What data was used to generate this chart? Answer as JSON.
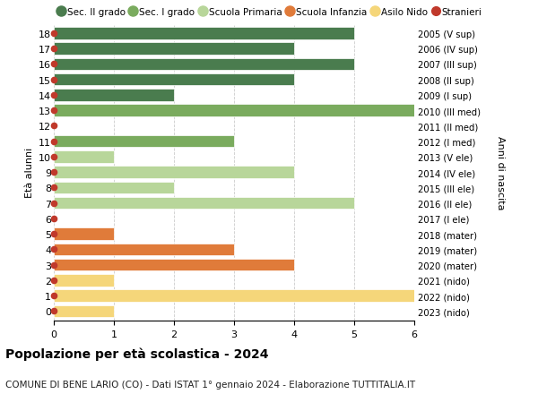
{
  "ages": [
    18,
    17,
    16,
    15,
    14,
    13,
    12,
    11,
    10,
    9,
    8,
    7,
    6,
    5,
    4,
    3,
    2,
    1,
    0
  ],
  "right_labels": [
    "2005 (V sup)",
    "2006 (IV sup)",
    "2007 (III sup)",
    "2008 (II sup)",
    "2009 (I sup)",
    "2010 (III med)",
    "2011 (II med)",
    "2012 (I med)",
    "2013 (V ele)",
    "2014 (IV ele)",
    "2015 (III ele)",
    "2016 (II ele)",
    "2017 (I ele)",
    "2018 (mater)",
    "2019 (mater)",
    "2020 (mater)",
    "2021 (nido)",
    "2022 (nido)",
    "2023 (nido)"
  ],
  "bar_values": [
    5,
    4,
    5,
    4,
    2,
    6,
    0,
    3,
    1,
    4,
    2,
    5,
    0,
    1,
    3,
    4,
    1,
    6,
    1
  ],
  "bar_colors": [
    "#4a7c4e",
    "#4a7c4e",
    "#4a7c4e",
    "#4a7c4e",
    "#4a7c4e",
    "#7aab5e",
    "#7aab5e",
    "#7aab5e",
    "#b8d69a",
    "#b8d69a",
    "#b8d69a",
    "#b8d69a",
    "#b8d69a",
    "#e07b3a",
    "#e07b3a",
    "#e07b3a",
    "#f5d67a",
    "#f5d67a",
    "#f5d67a"
  ],
  "stranieri_color": "#c0392b",
  "legend_labels": [
    "Sec. II grado",
    "Sec. I grado",
    "Scuola Primaria",
    "Scuola Infanzia",
    "Asilo Nido",
    "Stranieri"
  ],
  "legend_colors": [
    "#4a7c4e",
    "#7aab5e",
    "#b8d69a",
    "#e07b3a",
    "#f5d67a",
    "#c0392b"
  ],
  "title": "Popolazione per età scolastica - 2024",
  "subtitle": "COMUNE DI BENE LARIO (CO) - Dati ISTAT 1° gennaio 2024 - Elaborazione TUTTITALIA.IT",
  "ylabel": "Età alunni",
  "right_ylabel": "Anni di nascita",
  "xlim": [
    0,
    6
  ],
  "xticks": [
    0,
    1,
    2,
    3,
    4,
    5,
    6
  ],
  "bg_color": "#ffffff",
  "grid_color": "#cccccc",
  "bar_height": 0.78
}
